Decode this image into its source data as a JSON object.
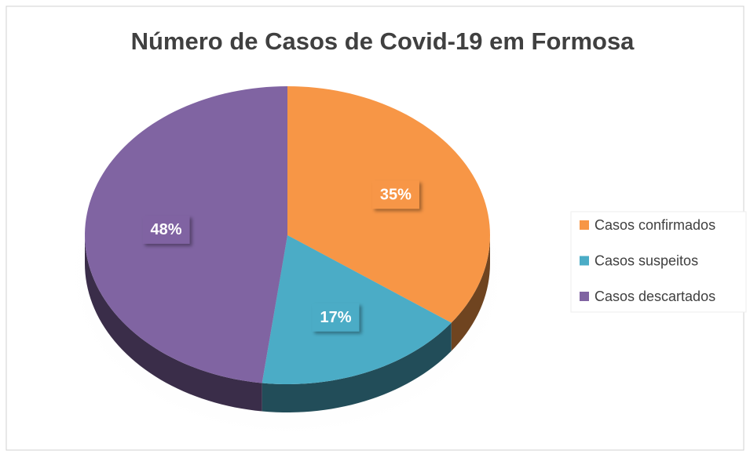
{
  "chart_data": {
    "type": "pie",
    "title": "Número de Casos de Covid-19 em Formosa",
    "categories": [
      "Casos confirmados",
      "Casos suspeitos",
      "Casos descartados"
    ],
    "values": [
      35,
      17,
      48
    ],
    "value_labels": [
      "35%",
      "17%",
      "48%"
    ],
    "colors": [
      "#f79646",
      "#4bacc6",
      "#8064a2"
    ],
    "legend": "right"
  }
}
